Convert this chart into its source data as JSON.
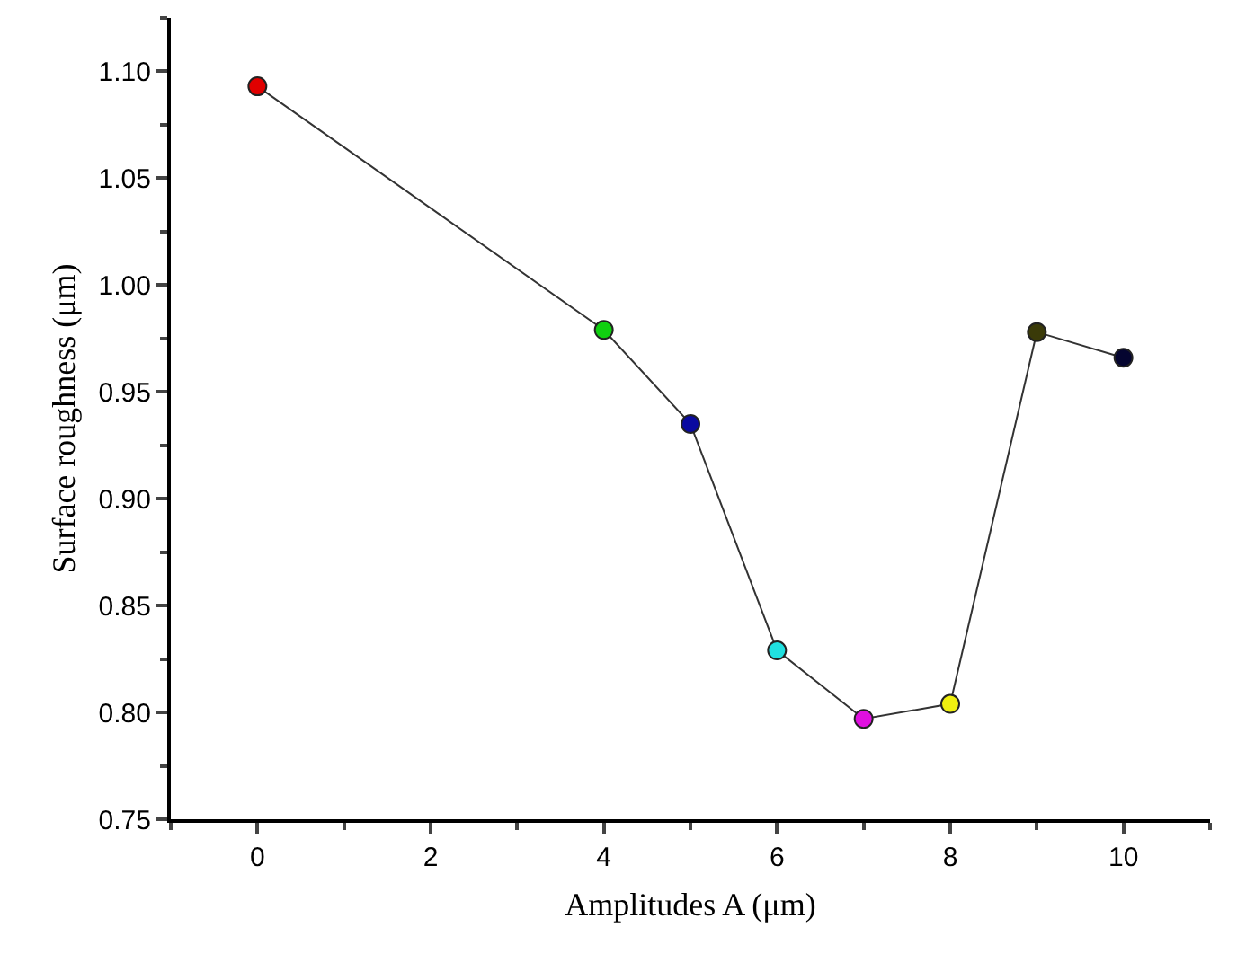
{
  "chart_data": {
    "type": "line",
    "xlabel": "Amplitudes A (μm)",
    "ylabel": "Surface roughness (μm)",
    "x": [
      0,
      4,
      5,
      6,
      7,
      8,
      9,
      10
    ],
    "series": [
      {
        "color": "#333333",
        "colors": [
          "#e00000",
          "#10d010",
          "#0a0aa0",
          "#20e0e0",
          "#e010e0",
          "#f0f010",
          "#3a3a08",
          "#050530"
        ],
        "values": [
          1.093,
          0.979,
          0.935,
          0.829,
          0.797,
          0.804,
          0.978,
          0.966
        ]
      }
    ],
    "xlim": [
      -1,
      11
    ],
    "xticks": [
      0,
      2,
      4,
      6,
      8,
      10
    ],
    "ylim": [
      0.75,
      1.125
    ],
    "yticks": [
      {
        "value": 0.75,
        "label": "0.75"
      },
      {
        "value": 0.8,
        "label": "0.80"
      },
      {
        "value": 0.85,
        "label": "0.85"
      },
      {
        "value": 0.9,
        "label": "0.90"
      },
      {
        "value": 0.95,
        "label": "0.95"
      },
      {
        "value": 1.0,
        "label": "1.00"
      },
      {
        "value": 1.05,
        "label": "1.05"
      },
      {
        "value": 1.1,
        "label": "1.10"
      }
    ],
    "marker": "circle",
    "line_style": "solid"
  }
}
